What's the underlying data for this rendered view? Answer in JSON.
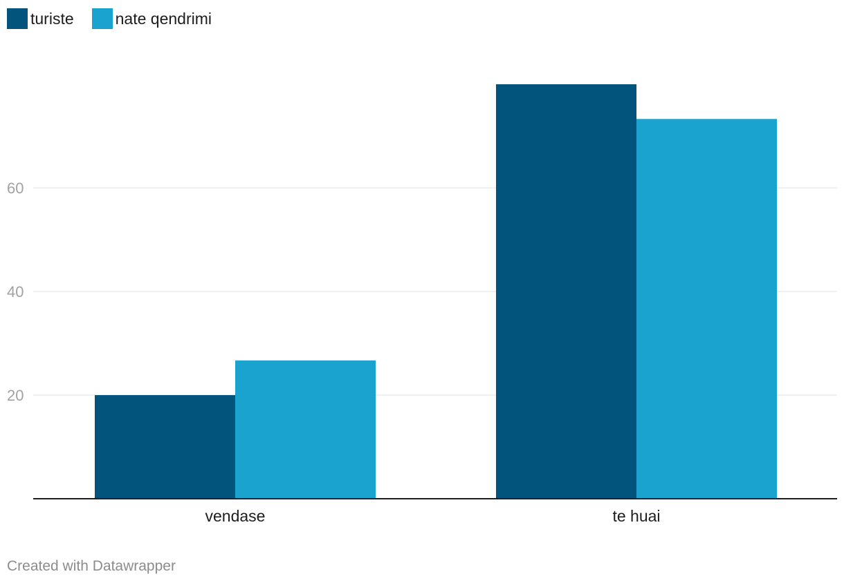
{
  "chart_data": {
    "type": "bar",
    "categories": [
      "vendase",
      "te huai"
    ],
    "series": [
      {
        "name": "turiste",
        "values": [
          20,
          80
        ],
        "color": "#03547c"
      },
      {
        "name": "nate qendrimi",
        "values": [
          26.7,
          73.3
        ],
        "color": "#1aa3cf"
      }
    ],
    "y_ticks": [
      20,
      40,
      60
    ],
    "ylim": [
      0,
      80
    ],
    "grid": true,
    "legend_position": "top-left"
  },
  "footer": {
    "text": "Created with Datawrapper"
  }
}
